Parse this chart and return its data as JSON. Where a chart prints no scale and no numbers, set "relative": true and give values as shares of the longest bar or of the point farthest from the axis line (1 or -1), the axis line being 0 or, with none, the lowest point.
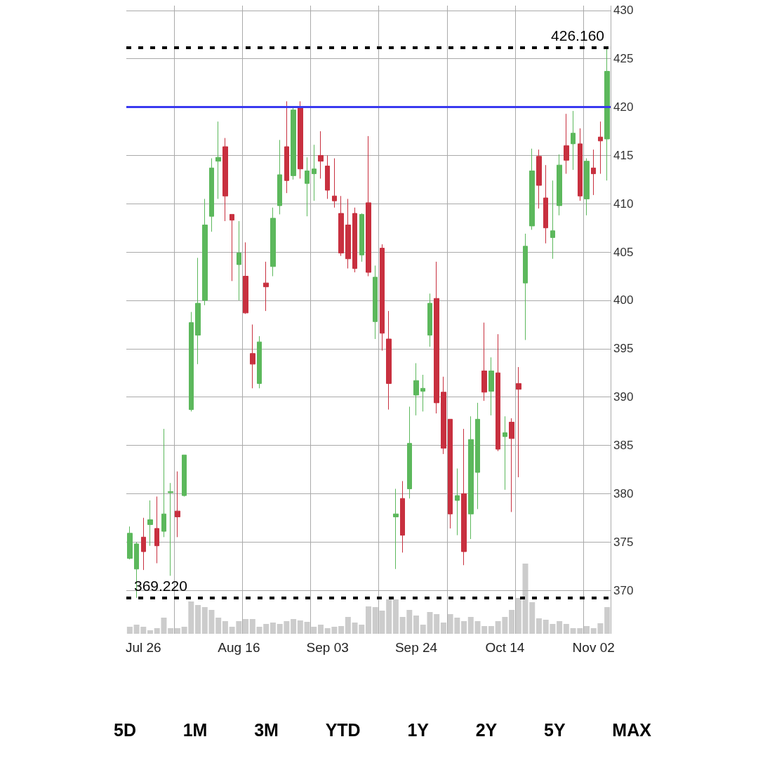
{
  "chart_data": [
    {
      "type": "candlestick",
      "categories": [
        null,
        null,
        "Jul 26",
        null,
        null,
        null,
        null,
        null,
        null,
        null,
        null,
        null,
        null,
        null,
        null,
        null,
        "Aug 16",
        null,
        null,
        null,
        null,
        null,
        null,
        null,
        null,
        null,
        null,
        null,
        null,
        "Sep 03",
        null,
        null,
        null,
        null,
        null,
        null,
        null,
        null,
        null,
        null,
        null,
        null,
        "Sep 24",
        null,
        null,
        null,
        null,
        null,
        null,
        null,
        null,
        null,
        null,
        null,
        null,
        "Oct 14",
        null,
        null,
        null,
        null,
        null,
        null,
        null,
        null,
        null,
        null,
        null,
        null,
        "Nov 02",
        null,
        null
      ],
      "ohlc": [
        [
          373.3,
          376.6,
          373.2,
          375.9
        ],
        [
          372.2,
          375.0,
          369.22,
          374.8
        ],
        [
          375.5,
          377.5,
          372.1,
          374.0
        ],
        [
          376.8,
          379.3,
          374.6,
          377.3
        ],
        [
          376.4,
          379.7,
          372.8,
          374.6
        ],
        [
          376.1,
          386.7,
          375.5,
          377.9
        ],
        [
          380.1,
          381.1,
          371.5,
          380.2
        ],
        [
          378.2,
          382.3,
          375.5,
          377.6
        ],
        [
          379.8,
          384.0,
          379.7,
          384.0
        ],
        [
          388.7,
          398.8,
          388.5,
          397.7
        ],
        [
          396.4,
          404.4,
          393.4,
          399.7
        ],
        [
          400.0,
          410.5,
          399.5,
          407.8
        ],
        [
          408.7,
          414.7,
          407.1,
          413.7
        ],
        [
          414.4,
          418.5,
          410.5,
          414.8
        ],
        [
          415.9,
          416.8,
          408.2,
          410.8
        ],
        [
          408.9,
          408.9,
          402.0,
          408.3
        ],
        [
          403.7,
          408.2,
          400.0,
          404.9
        ],
        [
          402.5,
          406.0,
          398.6,
          398.7
        ],
        [
          394.5,
          397.5,
          390.9,
          393.4
        ],
        [
          391.4,
          396.3,
          390.9,
          395.7
        ],
        [
          401.8,
          404.0,
          398.9,
          401.4
        ],
        [
          403.5,
          409.6,
          402.5,
          408.5
        ],
        [
          409.8,
          416.6,
          408.9,
          413.0
        ],
        [
          415.9,
          420.6,
          411.1,
          412.4
        ],
        [
          412.9,
          419.9,
          412.5,
          419.7
        ],
        [
          419.9,
          420.6,
          412.6,
          413.6
        ],
        [
          412.1,
          414.8,
          408.7,
          413.4
        ],
        [
          413.1,
          416.1,
          410.3,
          413.6
        ],
        [
          415.0,
          417.5,
          412.6,
          414.4
        ],
        [
          413.9,
          415.0,
          410.5,
          411.4
        ],
        [
          410.8,
          414.7,
          409.6,
          410.3
        ],
        [
          409.0,
          410.8,
          404.6,
          404.9
        ],
        [
          407.8,
          410.5,
          403.3,
          404.3
        ],
        [
          409.0,
          409.6,
          402.9,
          403.3
        ],
        [
          404.7,
          409.0,
          404.0,
          408.9
        ],
        [
          410.1,
          417.0,
          402.5,
          402.9
        ],
        [
          397.8,
          403.6,
          396.0,
          402.4
        ],
        [
          405.4,
          405.8,
          394.8,
          396.6
        ],
        [
          396.0,
          398.9,
          388.7,
          391.4
        ],
        [
          377.6,
          380.5,
          372.2,
          377.9
        ],
        [
          379.5,
          381.3,
          373.9,
          375.7
        ],
        [
          380.5,
          389.0,
          379.5,
          385.2
        ],
        [
          390.2,
          393.5,
          388.1,
          391.7
        ],
        [
          390.6,
          392.3,
          388.5,
          390.9
        ],
        [
          396.4,
          400.7,
          395.2,
          399.7
        ],
        [
          400.2,
          404.0,
          388.3,
          389.4
        ],
        [
          390.5,
          392.1,
          384.1,
          384.7
        ],
        [
          387.7,
          387.7,
          376.4,
          377.9
        ],
        [
          379.3,
          382.6,
          375.7,
          379.8
        ],
        [
          380.0,
          386.7,
          372.6,
          374.0
        ],
        [
          377.9,
          388.0,
          375.3,
          385.6
        ],
        [
          382.2,
          389.4,
          378.4,
          387.7
        ],
        [
          392.7,
          397.7,
          389.6,
          390.5
        ],
        [
          390.6,
          394.1,
          388.1,
          392.7
        ],
        [
          392.5,
          396.5,
          384.4,
          384.6
        ],
        [
          385.9,
          388.0,
          380.4,
          386.3
        ],
        [
          387.4,
          387.8,
          378.1,
          385.7
        ],
        [
          391.4,
          393.1,
          381.7,
          390.8
        ],
        [
          401.8,
          406.9,
          395.9,
          405.6
        ],
        [
          407.7,
          415.7,
          407.3,
          413.4
        ],
        [
          414.9,
          415.6,
          409.5,
          411.9
        ],
        [
          410.6,
          414.0,
          405.9,
          407.5
        ],
        [
          406.5,
          412.4,
          404.3,
          407.2
        ],
        [
          409.8,
          415.1,
          408.8,
          414.0
        ],
        [
          416.0,
          419.3,
          413.1,
          414.5
        ],
        [
          416.2,
          419.6,
          413.5,
          417.3
        ],
        [
          416.2,
          417.8,
          410.3,
          410.8
        ],
        [
          410.5,
          414.7,
          408.8,
          414.4
        ],
        [
          413.7,
          415.6,
          410.9,
          413.1
        ],
        [
          416.9,
          418.5,
          413.1,
          416.5
        ],
        [
          416.7,
          426.16,
          412.4,
          423.7
        ]
      ],
      "colors": [
        "#5cb85c",
        "#5cb85c",
        "#c8303f",
        "#5cb85c",
        "#c8303f",
        "#5cb85c",
        "#5cb85c",
        "#c8303f",
        "#5cb85c",
        "#5cb85c",
        "#5cb85c",
        "#5cb85c",
        "#5cb85c",
        "#5cb85c",
        "#c8303f",
        "#c8303f",
        "#5cb85c",
        "#c8303f",
        "#c8303f",
        "#5cb85c",
        "#c8303f",
        "#5cb85c",
        "#5cb85c",
        "#c8303f",
        "#5cb85c",
        "#c8303f",
        "#5cb85c",
        "#5cb85c",
        "#c8303f",
        "#c8303f",
        "#c8303f",
        "#c8303f",
        "#c8303f",
        "#c8303f",
        "#5cb85c",
        "#c8303f",
        "#5cb85c",
        "#c8303f",
        "#c8303f",
        "#5cb85c",
        "#c8303f",
        "#5cb85c",
        "#5cb85c",
        "#5cb85c",
        "#5cb85c",
        "#c8303f",
        "#c8303f",
        "#c8303f",
        "#5cb85c",
        "#c8303f",
        "#5cb85c",
        "#5cb85c",
        "#c8303f",
        "#5cb85c",
        "#c8303f",
        "#5cb85c",
        "#c8303f",
        "#c8303f",
        "#5cb85c",
        "#5cb85c",
        "#c8303f",
        "#c8303f",
        "#5cb85c",
        "#5cb85c",
        "#c8303f",
        "#5cb85c",
        "#c8303f",
        "#5cb85c",
        "#c8303f",
        "#c8303f",
        "#5cb85c"
      ],
      "ylim": [
        365.5,
        430.5
      ],
      "yticks": [
        370,
        375,
        380,
        385,
        390,
        395,
        400,
        405,
        410,
        415,
        420,
        425,
        430
      ],
      "grid": true,
      "ref_lines": [
        {
          "axis": "y",
          "value": 426.16,
          "label": "426.160",
          "color": "#000000",
          "line_style": "dotted"
        },
        {
          "axis": "y",
          "value": 420,
          "color": "#3a3af0",
          "line_style": "solid"
        },
        {
          "axis": "y",
          "value": 369.22,
          "label": "369.220",
          "color": "#000000",
          "line_style": "dotted"
        }
      ],
      "annotations": [
        "5D",
        "1M",
        "3M",
        "YTD",
        "1Y",
        "2Y",
        "5Y",
        "MAX"
      ]
    },
    {
      "type": "bar",
      "relative": true,
      "color": "#cccccc",
      "categories": [
        null,
        null,
        null,
        null,
        null,
        null,
        null,
        null,
        null,
        null,
        null,
        null,
        null,
        null,
        null,
        null,
        null,
        null,
        null,
        null,
        null,
        null,
        null,
        null,
        null,
        null,
        null,
        null,
        null,
        null,
        null,
        null,
        null,
        null,
        null,
        null,
        null,
        null,
        null,
        null,
        null,
        null,
        null,
        null,
        null,
        null,
        null,
        null,
        null,
        null,
        null,
        null,
        null,
        null,
        null,
        null,
        null,
        null,
        null,
        null,
        null,
        null,
        null,
        null,
        null,
        null,
        null,
        null,
        null,
        null,
        null
      ],
      "values": [
        0.1,
        0.13,
        0.1,
        0.05,
        0.08,
        0.23,
        0.08,
        0.08,
        0.1,
        0.46,
        0.41,
        0.38,
        0.34,
        0.23,
        0.18,
        0.1,
        0.18,
        0.21,
        0.21,
        0.1,
        0.14,
        0.16,
        0.14,
        0.18,
        0.21,
        0.19,
        0.17,
        0.1,
        0.13,
        0.08,
        0.1,
        0.11,
        0.24,
        0.16,
        0.13,
        0.39,
        0.38,
        0.33,
        0.49,
        0.49,
        0.24,
        0.34,
        0.26,
        0.13,
        0.31,
        0.28,
        0.16,
        0.28,
        0.23,
        0.18,
        0.24,
        0.18,
        0.11,
        0.11,
        0.18,
        0.24,
        0.34,
        0.51,
        1,
        0.45,
        0.22,
        0.2,
        0.14,
        0.18,
        0.14,
        0.08,
        0.08,
        0.11,
        0.08,
        0.15,
        0.38
      ]
    }
  ]
}
